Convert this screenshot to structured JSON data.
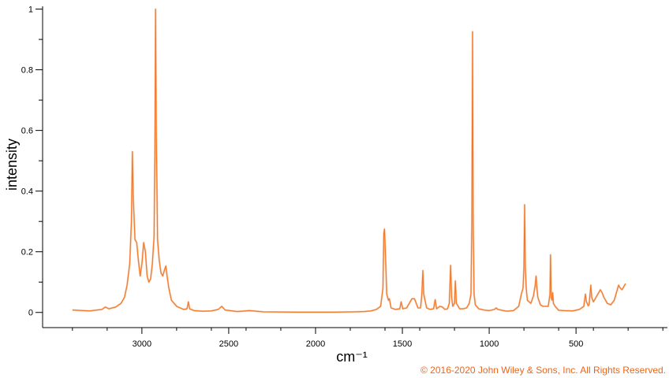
{
  "chart_data": {
    "type": "line",
    "title": "",
    "xlabel": "cm⁻¹",
    "ylabel": "intensity",
    "x_reversed": true,
    "xlim": [
      3490,
      10
    ],
    "ylim": [
      -0.05,
      1.03
    ],
    "x_ticks": [
      {
        "value": 3000,
        "label": "3000"
      },
      {
        "value": 2500,
        "label": "2500"
      },
      {
        "value": 2000,
        "label": "2000"
      },
      {
        "value": 1500,
        "label": "1500"
      },
      {
        "value": 1000,
        "label": "1000"
      },
      {
        "value": 500,
        "label": "500"
      }
    ],
    "x_minor_ticks": [
      3400,
      3200,
      2800,
      2600,
      2400,
      2200,
      1800,
      1600,
      1400,
      1200,
      800,
      600,
      400,
      200,
      0
    ],
    "y_ticks": [
      {
        "value": 0,
        "label": "0"
      },
      {
        "value": 0.2,
        "label": "0.2"
      },
      {
        "value": 0.4,
        "label": "0.4"
      },
      {
        "value": 0.6,
        "label": "0.6"
      },
      {
        "value": 0.8,
        "label": "0.8"
      },
      {
        "value": 1,
        "label": "1"
      }
    ],
    "y_minor_ticks": [
      0.1,
      0.3,
      0.5,
      0.7,
      0.9
    ],
    "grid": false,
    "legend": "none",
    "line_color": "#f2782a",
    "fill_color": "#f9c3a0",
    "series": [
      {
        "values": [
          [
            3400,
            0.008
          ],
          [
            3300,
            0.005
          ],
          [
            3230,
            0.01
          ],
          [
            3210,
            0.018
          ],
          [
            3190,
            0.012
          ],
          [
            3150,
            0.018
          ],
          [
            3120,
            0.03
          ],
          [
            3100,
            0.05
          ],
          [
            3085,
            0.09
          ],
          [
            3070,
            0.16
          ],
          [
            3060,
            0.3
          ],
          [
            3055,
            0.53
          ],
          [
            3050,
            0.38
          ],
          [
            3040,
            0.24
          ],
          [
            3030,
            0.23
          ],
          [
            3020,
            0.17
          ],
          [
            3010,
            0.12
          ],
          [
            3000,
            0.16
          ],
          [
            2990,
            0.23
          ],
          [
            2980,
            0.2
          ],
          [
            2970,
            0.12
          ],
          [
            2960,
            0.1
          ],
          [
            2950,
            0.11
          ],
          [
            2940,
            0.16
          ],
          [
            2930,
            0.25
          ],
          [
            2925,
            0.55
          ],
          [
            2921,
            1.0
          ],
          [
            2917,
            0.6
          ],
          [
            2910,
            0.24
          ],
          [
            2900,
            0.17
          ],
          [
            2890,
            0.13
          ],
          [
            2880,
            0.12
          ],
          [
            2870,
            0.14
          ],
          [
            2862,
            0.153
          ],
          [
            2855,
            0.12
          ],
          [
            2845,
            0.08
          ],
          [
            2830,
            0.04
          ],
          [
            2800,
            0.02
          ],
          [
            2760,
            0.01
          ],
          [
            2740,
            0.012
          ],
          [
            2732,
            0.035
          ],
          [
            2725,
            0.012
          ],
          [
            2700,
            0.006
          ],
          [
            2650,
            0.004
          ],
          [
            2600,
            0.005
          ],
          [
            2560,
            0.01
          ],
          [
            2540,
            0.02
          ],
          [
            2520,
            0.008
          ],
          [
            2450,
            0.003
          ],
          [
            2380,
            0.006
          ],
          [
            2300,
            0.002
          ],
          [
            2100,
            0.001
          ],
          [
            1900,
            0.001
          ],
          [
            1780,
            0.002
          ],
          [
            1720,
            0.003
          ],
          [
            1680,
            0.005
          ],
          [
            1650,
            0.01
          ],
          [
            1625,
            0.02
          ],
          [
            1612,
            0.08
          ],
          [
            1607,
            0.26
          ],
          [
            1603,
            0.275
          ],
          [
            1598,
            0.2
          ],
          [
            1590,
            0.06
          ],
          [
            1580,
            0.04
          ],
          [
            1575,
            0.045
          ],
          [
            1565,
            0.015
          ],
          [
            1540,
            0.01
          ],
          [
            1515,
            0.012
          ],
          [
            1507,
            0.035
          ],
          [
            1498,
            0.012
          ],
          [
            1475,
            0.015
          ],
          [
            1460,
            0.03
          ],
          [
            1445,
            0.045
          ],
          [
            1430,
            0.045
          ],
          [
            1420,
            0.03
          ],
          [
            1410,
            0.015
          ],
          [
            1395,
            0.015
          ],
          [
            1388,
            0.06
          ],
          [
            1382,
            0.138
          ],
          [
            1377,
            0.06
          ],
          [
            1360,
            0.015
          ],
          [
            1340,
            0.01
          ],
          [
            1320,
            0.012
          ],
          [
            1311,
            0.042
          ],
          [
            1303,
            0.012
          ],
          [
            1285,
            0.02
          ],
          [
            1270,
            0.018
          ],
          [
            1255,
            0.01
          ],
          [
            1240,
            0.012
          ],
          [
            1230,
            0.03
          ],
          [
            1222,
            0.155
          ],
          [
            1216,
            0.05
          ],
          [
            1210,
            0.02
          ],
          [
            1200,
            0.03
          ],
          [
            1195,
            0.104
          ],
          [
            1189,
            0.03
          ],
          [
            1170,
            0.012
          ],
          [
            1150,
            0.012
          ],
          [
            1130,
            0.015
          ],
          [
            1115,
            0.03
          ],
          [
            1105,
            0.06
          ],
          [
            1100,
            0.3
          ],
          [
            1096,
            0.925
          ],
          [
            1092,
            0.3
          ],
          [
            1087,
            0.06
          ],
          [
            1080,
            0.025
          ],
          [
            1060,
            0.012
          ],
          [
            1030,
            0.008
          ],
          [
            1000,
            0.006
          ],
          [
            970,
            0.01
          ],
          [
            960,
            0.015
          ],
          [
            950,
            0.01
          ],
          [
            900,
            0.004
          ],
          [
            860,
            0.006
          ],
          [
            830,
            0.02
          ],
          [
            815,
            0.06
          ],
          [
            805,
            0.08
          ],
          [
            800,
            0.15
          ],
          [
            796,
            0.355
          ],
          [
            792,
            0.15
          ],
          [
            787,
            0.08
          ],
          [
            780,
            0.04
          ],
          [
            770,
            0.035
          ],
          [
            760,
            0.03
          ],
          [
            745,
            0.055
          ],
          [
            735,
            0.09
          ],
          [
            730,
            0.12
          ],
          [
            725,
            0.08
          ],
          [
            720,
            0.05
          ],
          [
            705,
            0.025
          ],
          [
            690,
            0.02
          ],
          [
            680,
            0.02
          ],
          [
            660,
            0.02
          ],
          [
            650,
            0.06
          ],
          [
            647,
            0.19
          ],
          [
            643,
            0.05
          ],
          [
            638,
            0.04
          ],
          [
            634,
            0.065
          ],
          [
            630,
            0.03
          ],
          [
            620,
            0.02
          ],
          [
            600,
            0.007
          ],
          [
            570,
            0.006
          ],
          [
            520,
            0.005
          ],
          [
            480,
            0.01
          ],
          [
            455,
            0.02
          ],
          [
            446,
            0.06
          ],
          [
            440,
            0.035
          ],
          [
            430,
            0.022
          ],
          [
            425,
            0.025
          ],
          [
            415,
            0.09
          ],
          [
            410,
            0.05
          ],
          [
            400,
            0.035
          ],
          [
            390,
            0.045
          ],
          [
            375,
            0.06
          ],
          [
            360,
            0.075
          ],
          [
            350,
            0.065
          ],
          [
            340,
            0.05
          ],
          [
            320,
            0.03
          ],
          [
            300,
            0.025
          ],
          [
            280,
            0.04
          ],
          [
            270,
            0.06
          ],
          [
            260,
            0.08
          ],
          [
            255,
            0.09
          ],
          [
            245,
            0.08
          ],
          [
            235,
            0.075
          ],
          [
            225,
            0.085
          ],
          [
            215,
            0.095
          ]
        ]
      }
    ]
  },
  "copyright": "© 2016-2020 John Wiley & Sons, Inc. All Rights Reserved."
}
